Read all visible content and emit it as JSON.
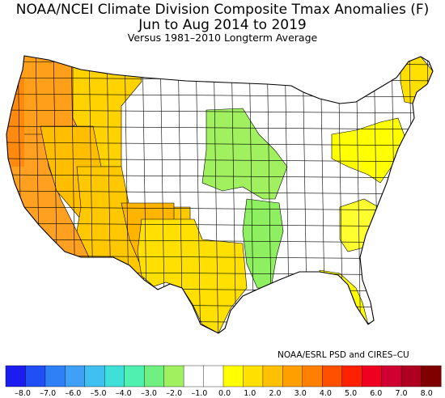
{
  "header": {
    "title_line1": "NOAA/NCEI Climate Division Composite Tmax Anomalies (F)",
    "title_line2": "Jun to Aug 2014 to 2019",
    "subtitle": "Versus 1981–2010 Longterm Average"
  },
  "credit": "NOAA/ESRL PSD and CIRES–CU",
  "colorbar": {
    "labels": [
      "–8.0",
      "–7.0",
      "–6.0",
      "–5.0",
      "–4.0",
      "–3.0",
      "–2.0",
      "–1.0",
      "0.0",
      "1.0",
      "2.0",
      "3.0",
      "4.0",
      "5.0",
      "6.0",
      "7.0",
      "8.0"
    ],
    "colors": [
      "#1c1cf0",
      "#1f4ff5",
      "#2f7ff7",
      "#3fa0f5",
      "#3fc0f0",
      "#3fe0d8",
      "#4ff0b0",
      "#70f080",
      "#a0f060",
      "#ffffff",
      "#ffffff",
      "#ffff00",
      "#ffe000",
      "#ffc000",
      "#ffa000",
      "#ff8000",
      "#ff5000",
      "#ff2000",
      "#f00020",
      "#d00030",
      "#b00020",
      "#800000"
    ]
  },
  "map": {
    "regions": [
      {
        "name": "pacific-northwest",
        "color": "#ff9f1a"
      },
      {
        "name": "northern-rockies",
        "color": "#ffd200"
      },
      {
        "name": "california-coast",
        "color": "#ffa020"
      },
      {
        "name": "great-basin",
        "color": "#ffbf00"
      },
      {
        "name": "southwest",
        "color": "#ffc800"
      },
      {
        "name": "texas",
        "color": "#ffe000"
      },
      {
        "name": "new-mexico-arizona",
        "color": "#ffb400"
      },
      {
        "name": "midwest-green",
        "color": "#a0f060"
      },
      {
        "name": "mississippi-valley",
        "color": "#8ef060"
      },
      {
        "name": "florida",
        "color": "#ffff00"
      },
      {
        "name": "southeast-coast",
        "color": "#ffff30"
      },
      {
        "name": "northeast",
        "color": "#ffff00"
      },
      {
        "name": "maine",
        "color": "#ffe000"
      }
    ]
  }
}
